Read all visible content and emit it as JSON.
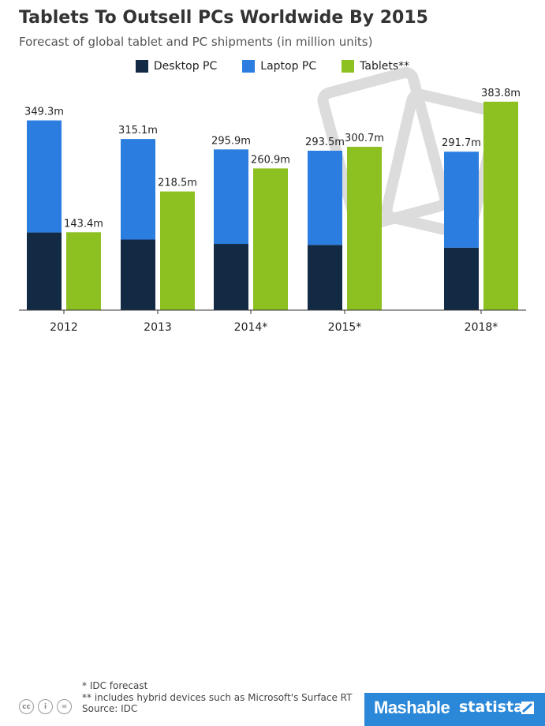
{
  "header": {
    "title": "Tablets To Outsell PCs Worldwide By 2015",
    "subtitle": "Forecast of global tablet and PC shipments (in million units)"
  },
  "colors": {
    "desktop": "#132a45",
    "laptop": "#2b7de0",
    "tablets": "#8dc021",
    "axis": "#333333",
    "watermark": "#dcdcdc",
    "brand": "#2b88d8"
  },
  "chart_data": {
    "type": "bar",
    "stacked_groups": true,
    "categories": [
      "2012",
      "2013",
      "2014*",
      "2015*",
      "2018*"
    ],
    "series": [
      {
        "name": "Desktop PC",
        "stack": "pc",
        "values": [
          143,
          130,
          122,
          120,
          115
        ]
      },
      {
        "name": "Laptop PC",
        "stack": "pc",
        "values": [
          206.3,
          185.1,
          173.9,
          173.5,
          176.7
        ]
      },
      {
        "name": "Tablets**",
        "stack": "tablets",
        "values": [
          143.4,
          218.5,
          260.9,
          300.7,
          383.8
        ]
      }
    ],
    "pc_totals": [
      349.3,
      315.1,
      295.9,
      293.5,
      291.7
    ],
    "pc_total_labels": [
      "349.3m",
      "315.1m",
      "295.9m",
      "293.5m",
      "291.7m"
    ],
    "tablet_labels": [
      "143.4m",
      "218.5m",
      "260.9m",
      "300.7m",
      "383.8m"
    ],
    "ylim": [
      0,
      400
    ],
    "grid": false,
    "legend_position": "top-center"
  },
  "footer": {
    "note1": "* IDC forecast",
    "note2": "** includes hybrid devices such as Microsoft's Surface RT",
    "source": "Source: IDC",
    "cc_icons": [
      "cc",
      "i",
      "="
    ],
    "brand1": "Mashable",
    "brand2": "statista"
  }
}
